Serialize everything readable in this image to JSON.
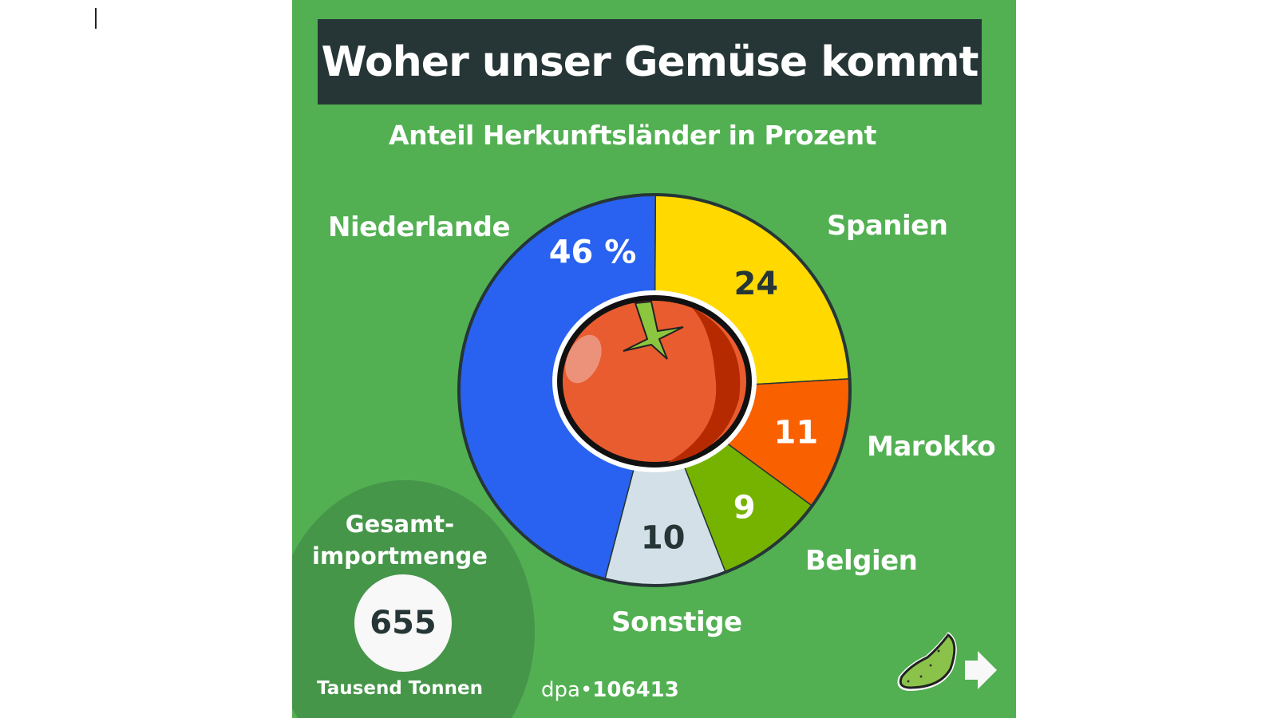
{
  "chart_data": {
    "type": "pie",
    "variant": "donut",
    "title": "Woher unser Gemüse kommt",
    "subtitle": "Anteil Herkunftsländer in Prozent",
    "unit": "%",
    "slices": [
      {
        "label": "Spanien",
        "value": 24,
        "value_label": "24",
        "color": "#FFD900",
        "text_color": "#263636"
      },
      {
        "label": "Marokko",
        "value": 11,
        "value_label": "11",
        "color": "#F86000",
        "text_color": "#ffffff"
      },
      {
        "label": "Belgien",
        "value": 9,
        "value_label": "9",
        "color": "#76B300",
        "text_color": "#ffffff"
      },
      {
        "label": "Sonstige",
        "value": 10,
        "value_label": "10",
        "color": "#D3E0E8",
        "text_color": "#263636"
      },
      {
        "label": "Niederlande",
        "value": 46,
        "value_label": "46 %",
        "color": "#2962F0",
        "text_color": "#ffffff"
      }
    ]
  },
  "total": {
    "label_line1": "Gesamt-",
    "label_line2": "importmenge",
    "value": "655",
    "unit": "Tausend Tonnen"
  },
  "credit": {
    "source": "dpa",
    "id": "106413"
  },
  "colors": {
    "background": "#52B052",
    "title_bar": "#263636",
    "total_circle": "#46964A"
  }
}
